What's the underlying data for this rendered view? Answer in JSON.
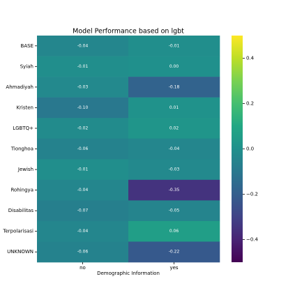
{
  "chart_data": {
    "type": "heatmap",
    "title": "Model Performance based on lgbt",
    "xlabel": "Demographic Information",
    "x": [
      "no",
      "yes"
    ],
    "y": [
      "BASE",
      "Syiah",
      "Ahmadiyah",
      "Kristen",
      "LGBTQ+",
      "Tionghoa",
      "Jewish",
      "Rohingya",
      "Disabilitas",
      "Terpolarisasi",
      "UNKNOWN"
    ],
    "values": [
      [
        -0.04,
        -0.01
      ],
      [
        -0.01,
        0.0
      ],
      [
        -0.03,
        -0.18
      ],
      [
        -0.1,
        0.01
      ],
      [
        -0.02,
        0.02
      ],
      [
        -0.06,
        -0.04
      ],
      [
        -0.01,
        -0.03
      ],
      [
        -0.04,
        -0.35
      ],
      [
        -0.07,
        -0.05
      ],
      [
        -0.04,
        0.06
      ],
      [
        -0.06,
        -0.22
      ]
    ],
    "value_labels": [
      [
        "-0.04",
        "-0.01"
      ],
      [
        "-0.01",
        "0.00"
      ],
      [
        "-0.03",
        "-0.18"
      ],
      [
        "-0.10",
        "0.01"
      ],
      [
        "-0.02",
        "0.02"
      ],
      [
        "-0.06",
        "-0.04"
      ],
      [
        "-0.01",
        "-0.03"
      ],
      [
        "-0.04",
        "-0.35"
      ],
      [
        "-0.07",
        "-0.05"
      ],
      [
        "-0.04",
        "0.06"
      ],
      [
        "-0.06",
        "-0.22"
      ]
    ],
    "colormap": "viridis",
    "clim": [
      -0.5,
      0.5
    ],
    "cticks": [
      0.4,
      0.2,
      {
        "value": 0,
        "label": "0.0"
      },
      {
        "value": -0.2,
        "label": "−0.2"
      },
      {
        "value": -0.4,
        "label": "−0.4"
      }
    ]
  }
}
